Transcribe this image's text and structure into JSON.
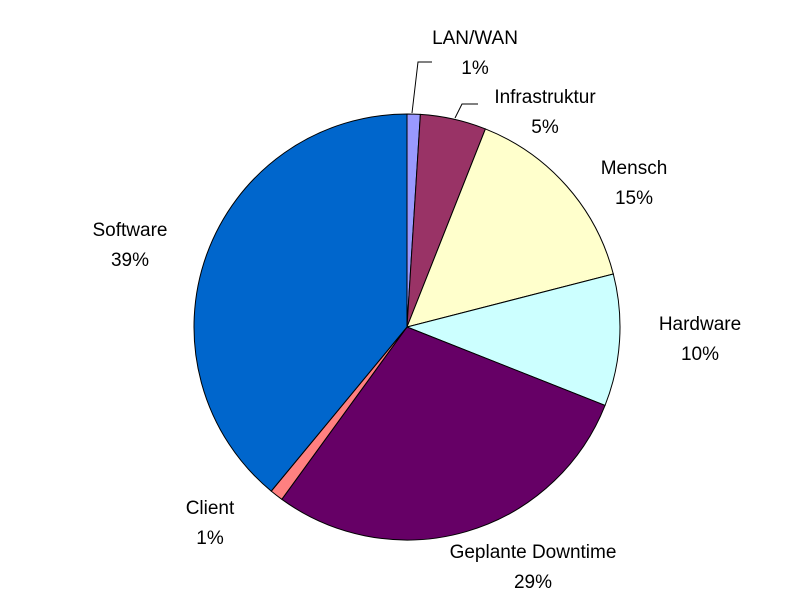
{
  "chart_data": {
    "type": "pie",
    "title": "",
    "slices": [
      {
        "label": "LAN/WAN",
        "percent_label": "1%",
        "value": 1,
        "color": "#9999ff"
      },
      {
        "label": "Infrastruktur",
        "percent_label": "5%",
        "value": 5,
        "color": "#993366"
      },
      {
        "label": "Mensch",
        "percent_label": "15%",
        "value": 15,
        "color": "#ffffcc"
      },
      {
        "label": "Hardware",
        "percent_label": "10%",
        "value": 10,
        "color": "#ccffff"
      },
      {
        "label": "Geplante Downtime",
        "percent_label": "29%",
        "value": 29,
        "color": "#660066"
      },
      {
        "label": "Client",
        "percent_label": "1%",
        "value": 1,
        "color": "#ff8080"
      },
      {
        "label": "Software",
        "percent_label": "39%",
        "value": 39,
        "color": "#0066cc"
      }
    ]
  }
}
